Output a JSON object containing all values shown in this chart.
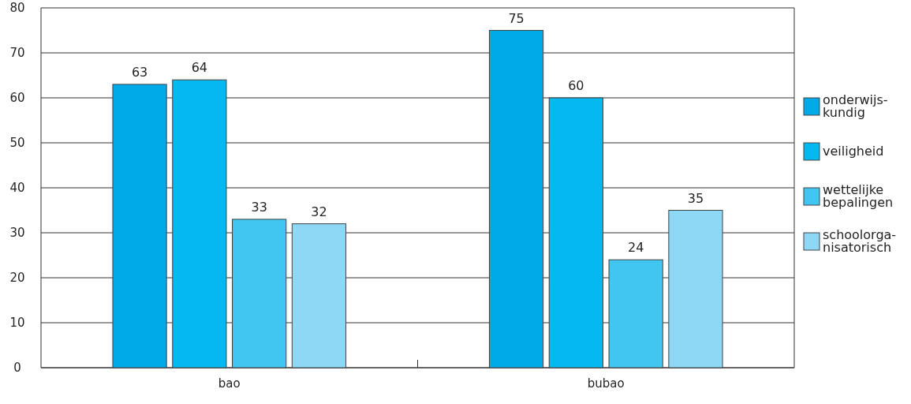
{
  "chart_data": {
    "type": "bar",
    "categories": [
      "bao",
      "bubao"
    ],
    "series": [
      {
        "name": "onderwijs-\nkundig",
        "color": "#00a9e8",
        "values": [
          63,
          75
        ]
      },
      {
        "name": "veiligheid",
        "color": "#04b9ef",
        "values": [
          64,
          60
        ]
      },
      {
        "name": "wettelijke\nbepalingen",
        "color": "#41c6f2",
        "values": [
          33,
          24
        ]
      },
      {
        "name": "schoolorga-\nnisatorisch",
        "color": "#8ed7f5",
        "values": [
          32,
          35
        ]
      }
    ],
    "ylim": [
      0,
      80
    ],
    "yticks": [
      0,
      10,
      20,
      30,
      40,
      50,
      60,
      70,
      80
    ],
    "grid": "y",
    "legend": "right",
    "data_labels": true
  }
}
